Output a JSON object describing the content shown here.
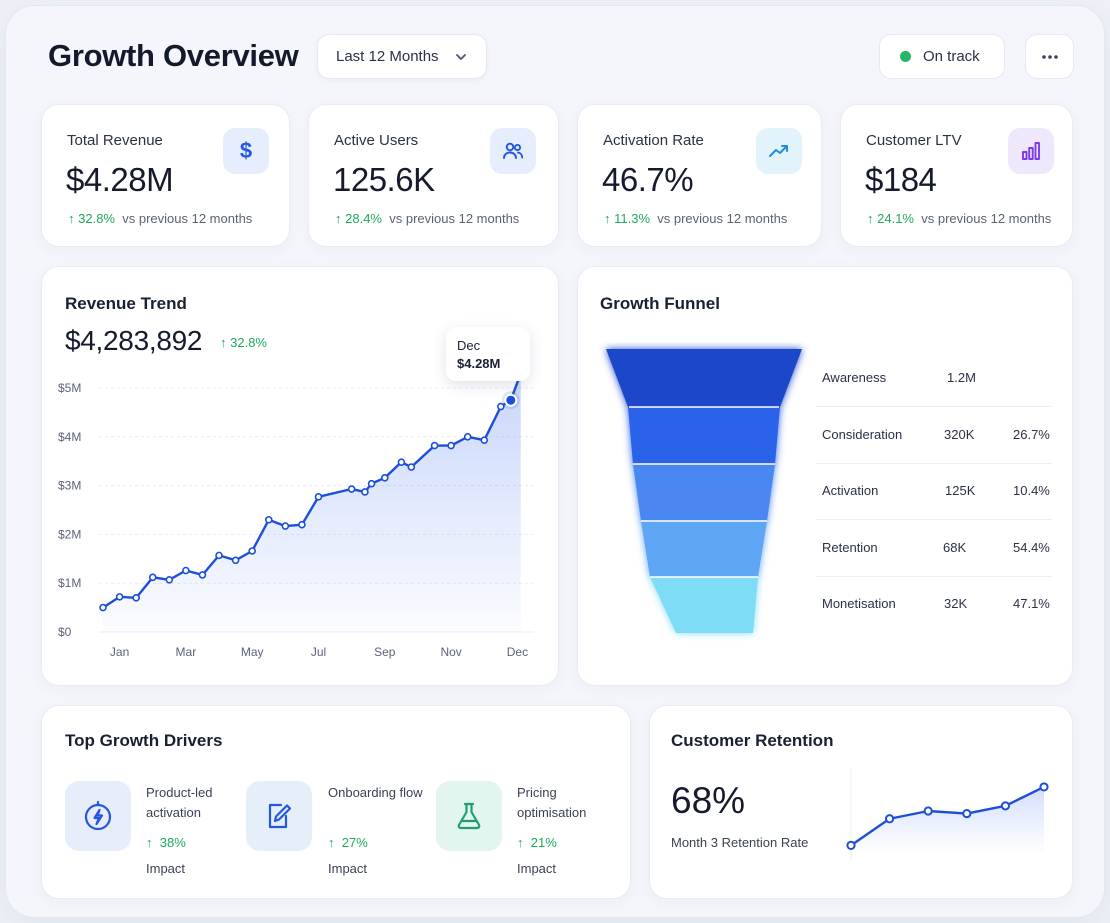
{
  "header": {
    "title": "Growth Overview",
    "range_label": "Last 12 Months",
    "status_label": "On track",
    "colors": {
      "status_dot": "#22b867"
    }
  },
  "kpis": [
    {
      "label": "Total Revenue",
      "value": "$4.28M",
      "delta": "32.8%",
      "compare": "vs previous 12 months",
      "icon": "dollar-icon"
    },
    {
      "label": "Active Users",
      "value": "125.6K",
      "delta": "28.4%",
      "compare": "vs previous 12 months",
      "icon": "users-icon"
    },
    {
      "label": "Activation Rate",
      "value": "46.7%",
      "delta": "11.3%",
      "compare": "vs previous 12 months",
      "icon": "trend-up-icon"
    },
    {
      "label": "Customer LTV",
      "value": "$184",
      "delta": "24.1%",
      "compare": "vs previous 12 months",
      "icon": "bar-chart-icon"
    }
  ],
  "revenue": {
    "title": "Revenue Trend",
    "total": "$4,283,892",
    "delta": "32.8%",
    "tooltip": {
      "month": "Dec",
      "value": "$4.28M"
    }
  },
  "funnel": {
    "title": "Growth Funnel",
    "stages": [
      {
        "name": "Awareness",
        "count": "1.2M",
        "rate": ""
      },
      {
        "name": "Consideration",
        "count": "320K",
        "rate": "26.7%"
      },
      {
        "name": "Activation",
        "count": "125K",
        "rate": "10.4%"
      },
      {
        "name": "Retention",
        "count": "68K",
        "rate": "54.4%"
      },
      {
        "name": "Monetisation",
        "count": "32K",
        "rate": "47.1%"
      }
    ],
    "colors": [
      "#1e46c8",
      "#2a64ea",
      "#4b87f0",
      "#5fa6f5",
      "#7fdcf7"
    ]
  },
  "drivers": {
    "title": "Top Growth Drivers",
    "items": [
      {
        "name": "Product-led activation",
        "pct": "38%",
        "impact_label": "Impact",
        "icon": "bolt-icon"
      },
      {
        "name": "Onboarding flow",
        "pct": "27%",
        "impact_label": "Impact",
        "icon": "edit-icon"
      },
      {
        "name": "Pricing optimisation",
        "pct": "21%",
        "impact_label": "Impact",
        "icon": "flask-icon"
      }
    ]
  },
  "retention": {
    "title": "Customer Retention",
    "value": "68%",
    "caption": "Month 3 Retention Rate"
  },
  "chart_data": [
    {
      "type": "area",
      "title": "Revenue Trend",
      "ylabel": "",
      "xlabel": "",
      "ylim": [
        0,
        5
      ],
      "y_unit": "$M",
      "yticks": [
        "$0",
        "$1M",
        "$2M",
        "$3M",
        "$4M",
        "$5M"
      ],
      "xticks": [
        "Jan",
        "Mar",
        "May",
        "Jul",
        "Sep",
        "Nov",
        "Dec"
      ],
      "xtick_positions": [
        0.5,
        2.5,
        4.5,
        6.5,
        8.5,
        10.5,
        12.5
      ],
      "xlim": [
        0,
        13
      ],
      "x": [
        0,
        0.5,
        1,
        1.5,
        2,
        2.5,
        3,
        3.5,
        4,
        4.5,
        5,
        5.5,
        6,
        6.5,
        7.5,
        7.9,
        8.1,
        8.5,
        9,
        9.3,
        10,
        10.5,
        11,
        11.5,
        12,
        12.3,
        12.6
      ],
      "values": [
        0.5,
        0.72,
        0.7,
        1.12,
        1.07,
        1.26,
        1.17,
        1.57,
        1.47,
        1.66,
        2.3,
        2.17,
        2.2,
        2.77,
        2.93,
        2.87,
        3.04,
        3.16,
        3.48,
        3.38,
        3.82,
        3.82,
        4.0,
        3.93,
        4.62,
        4.75,
        5.3
      ],
      "grid": true,
      "color": "#1d4ed8"
    },
    {
      "type": "line",
      "title": "Customer Retention",
      "x": [
        0,
        1,
        2,
        3,
        4,
        5
      ],
      "values": [
        0.1,
        0.41,
        0.5,
        0.47,
        0.56,
        0.78
      ],
      "ylim": [
        0,
        1
      ],
      "grid": false,
      "color": "#1d4ed8"
    }
  ]
}
